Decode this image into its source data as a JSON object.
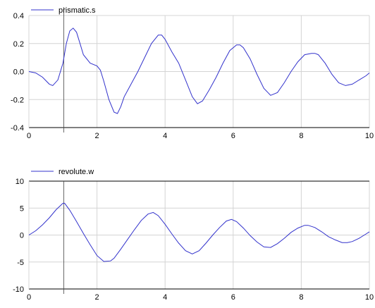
{
  "chart_data": [
    {
      "type": "line",
      "legend": "top-left",
      "grid": true,
      "xlim": [
        0,
        10
      ],
      "ylim": [
        -0.4,
        0.4
      ],
      "x_ticks": [
        "0",
        "2",
        "4",
        "6",
        "8",
        "10"
      ],
      "y_ticks": [
        "0.4",
        "0.2",
        "0.0",
        "-0.2",
        "-0.4"
      ],
      "series": [
        {
          "name": "prismatic.s",
          "color": "#3333cc",
          "x": [
            0,
            0.2,
            0.4,
            0.6,
            0.7,
            0.85,
            1.0,
            1.1,
            1.2,
            1.3,
            1.4,
            1.5,
            1.6,
            1.8,
            2.0,
            2.1,
            2.2,
            2.35,
            2.5,
            2.6,
            2.7,
            2.8,
            3.0,
            3.2,
            3.4,
            3.6,
            3.8,
            3.9,
            4.0,
            4.2,
            4.4,
            4.6,
            4.8,
            4.95,
            5.1,
            5.3,
            5.5,
            5.7,
            5.9,
            6.1,
            6.2,
            6.3,
            6.5,
            6.7,
            6.9,
            7.1,
            7.3,
            7.5,
            7.7,
            7.9,
            8.1,
            8.3,
            8.4,
            8.5,
            8.7,
            8.9,
            9.1,
            9.3,
            9.5,
            9.7,
            9.9,
            10.0
          ],
          "y": [
            0.0,
            -0.01,
            -0.04,
            -0.09,
            -0.1,
            -0.06,
            0.06,
            0.2,
            0.29,
            0.31,
            0.28,
            0.2,
            0.12,
            0.06,
            0.04,
            0.01,
            -0.07,
            -0.2,
            -0.29,
            -0.3,
            -0.25,
            -0.18,
            -0.09,
            0.0,
            0.1,
            0.2,
            0.26,
            0.26,
            0.23,
            0.14,
            0.06,
            -0.06,
            -0.18,
            -0.23,
            -0.21,
            -0.13,
            -0.04,
            0.06,
            0.15,
            0.19,
            0.19,
            0.17,
            0.09,
            -0.02,
            -0.12,
            -0.17,
            -0.15,
            -0.08,
            0.0,
            0.07,
            0.12,
            0.13,
            0.13,
            0.12,
            0.06,
            -0.02,
            -0.08,
            -0.1,
            -0.09,
            -0.06,
            -0.03,
            -0.01
          ]
        }
      ]
    },
    {
      "type": "line",
      "legend": "top-left",
      "grid": true,
      "xlim": [
        0,
        10
      ],
      "ylim": [
        -10,
        10
      ],
      "x_ticks": [
        "0",
        "2",
        "4",
        "6",
        "8",
        "10"
      ],
      "y_ticks": [
        "10",
        "5",
        "0",
        "-5",
        "-10"
      ],
      "series": [
        {
          "name": "revolute.w",
          "color": "#3333cc",
          "x": [
            0,
            0.2,
            0.4,
            0.6,
            0.8,
            1.0,
            1.05,
            1.2,
            1.4,
            1.6,
            1.8,
            2.0,
            2.2,
            2.4,
            2.5,
            2.7,
            2.9,
            3.1,
            3.3,
            3.5,
            3.65,
            3.8,
            4.0,
            4.2,
            4.4,
            4.6,
            4.8,
            5.0,
            5.2,
            5.4,
            5.6,
            5.8,
            5.95,
            6.1,
            6.3,
            6.5,
            6.7,
            6.9,
            7.1,
            7.3,
            7.5,
            7.7,
            7.9,
            8.1,
            8.2,
            8.4,
            8.6,
            8.8,
            9.0,
            9.2,
            9.35,
            9.5,
            9.7,
            9.9,
            10.0
          ],
          "y": [
            0.0,
            0.8,
            1.9,
            3.2,
            4.7,
            5.9,
            5.9,
            4.6,
            2.5,
            0.3,
            -1.8,
            -3.8,
            -4.9,
            -4.8,
            -4.3,
            -2.6,
            -0.8,
            1.0,
            2.7,
            3.9,
            4.2,
            3.6,
            2.0,
            0.2,
            -1.5,
            -2.9,
            -3.5,
            -2.9,
            -1.5,
            0.0,
            1.4,
            2.6,
            2.9,
            2.5,
            1.3,
            -0.1,
            -1.3,
            -2.2,
            -2.3,
            -1.6,
            -0.6,
            0.5,
            1.3,
            1.8,
            1.8,
            1.4,
            0.6,
            -0.3,
            -0.9,
            -1.4,
            -1.4,
            -1.2,
            -0.6,
            0.2,
            0.6
          ]
        }
      ]
    }
  ]
}
